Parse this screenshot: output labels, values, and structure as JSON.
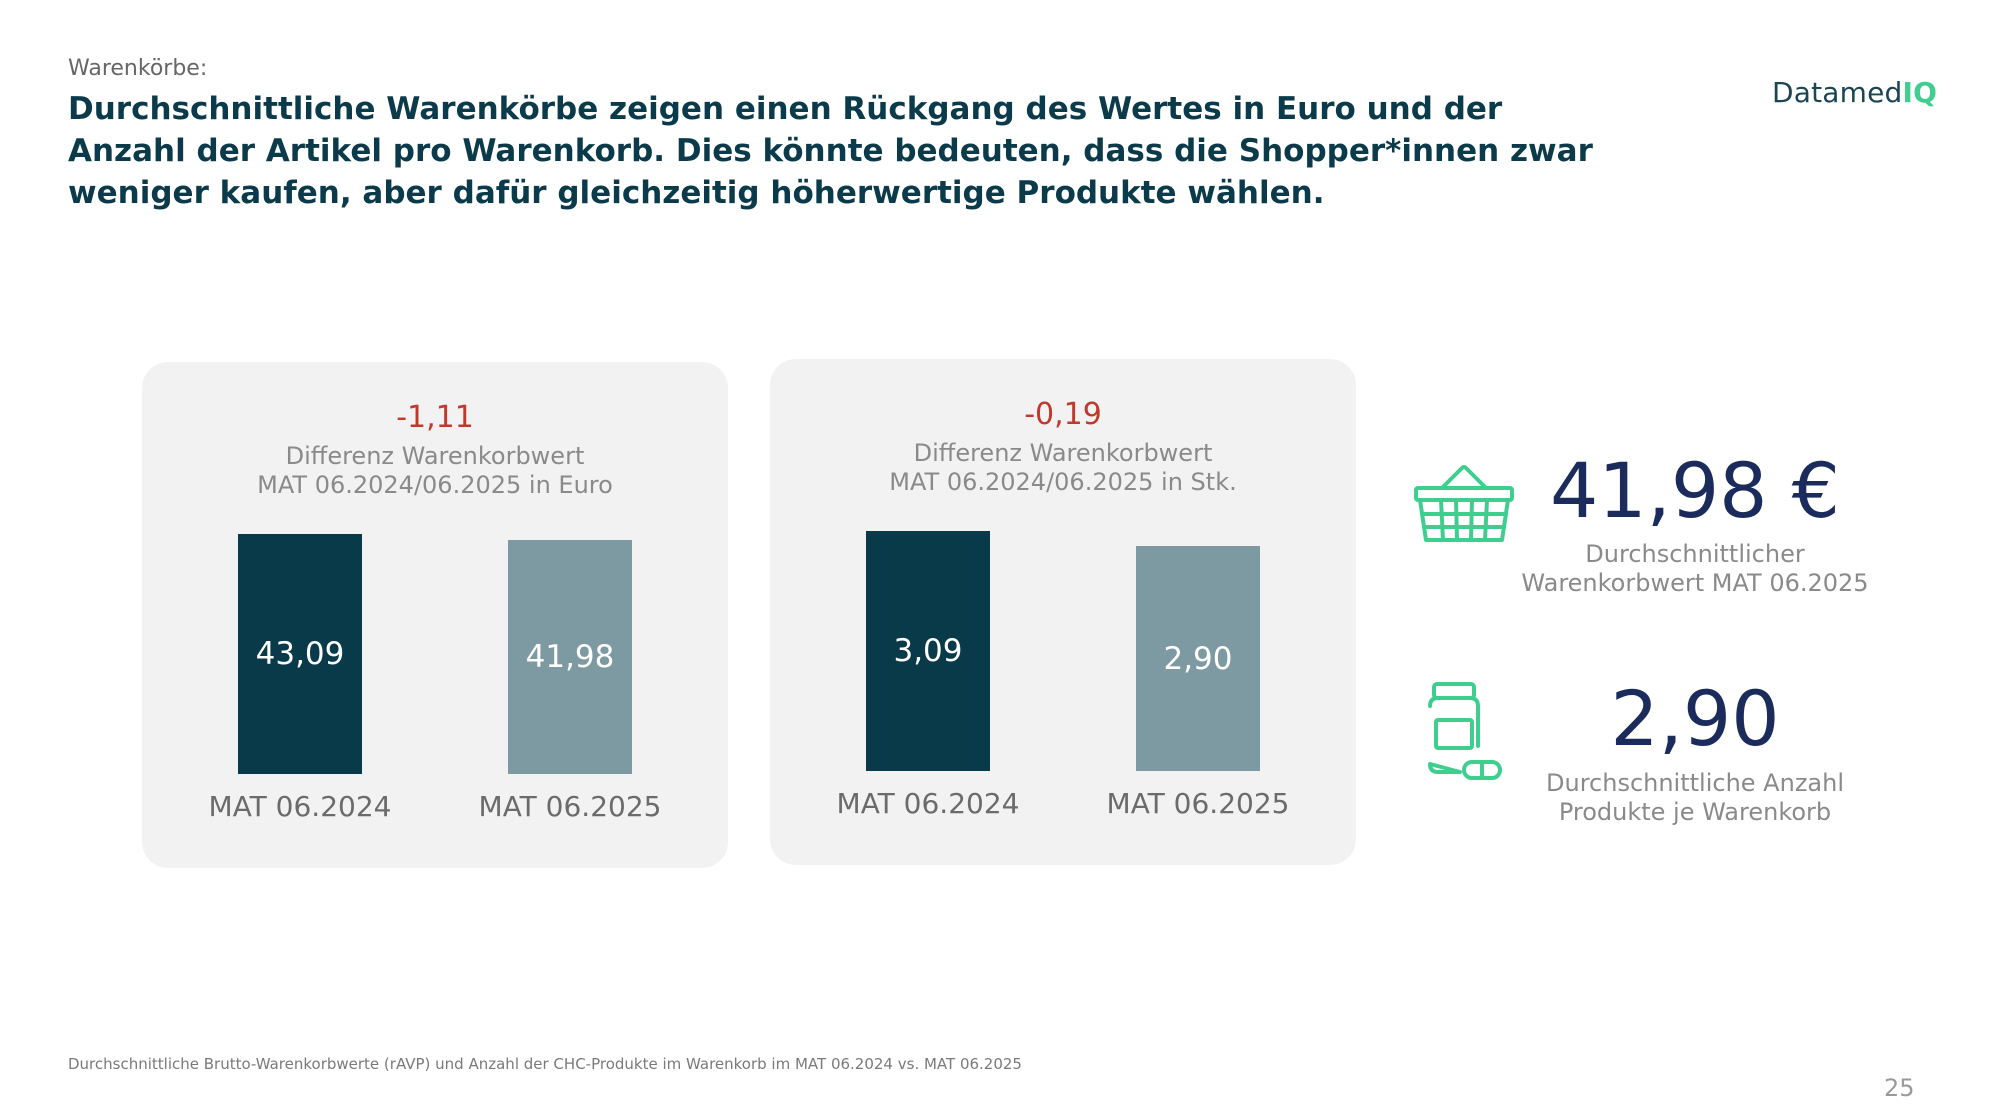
{
  "header": {
    "kicker": "Warenkörbe:",
    "headline": "Durchschnittliche Warenkörbe zeigen einen Rückgang des Wertes in Euro und der Anzahl der Artikel pro Warenkorb. Dies könnte bedeuten, dass die Shopper*innen zwar weniger kaufen, aber dafür gleichzeitig höherwertige Produkte wählen."
  },
  "logo": {
    "text_main": "Datamed",
    "text_accent": "IQ"
  },
  "colors": {
    "bar_2024": "#083a4a",
    "bar_2025": "#7d9aa2",
    "difference": "#c0392b",
    "icon": "#3ecf8e",
    "kpi_value": "#1b2c5c"
  },
  "chart_data": [
    {
      "type": "bar",
      "difference_label": "-1,11",
      "caption_line1": "Differenz Warenkorbwert",
      "caption_line2": "MAT 06.2024/06.2025 in Euro",
      "categories": [
        "MAT 06.2024",
        "MAT 06.2025"
      ],
      "values": [
        43.09,
        41.98
      ],
      "value_labels": [
        "43,09",
        "41,98"
      ]
    },
    {
      "type": "bar",
      "difference_label": "-0,19",
      "caption_line1": "Differenz Warenkorbwert",
      "caption_line2": "MAT 06.2024/06.2025 in Stk.",
      "categories": [
        "MAT 06.2024",
        "MAT 06.2025"
      ],
      "values": [
        3.09,
        2.9
      ],
      "value_labels": [
        "3,09",
        "2,90"
      ]
    }
  ],
  "kpis": [
    {
      "icon": "shopping-basket-icon",
      "value": "41,98 €",
      "label_line1": "Durchschnittlicher",
      "label_line2": "Warenkorbwert MAT 06.2025"
    },
    {
      "icon": "medicine-bottle-icon",
      "value": "2,90",
      "label_line1": "Durchschnittliche Anzahl",
      "label_line2": "Produkte je Warenkorb"
    }
  ],
  "footnote": "Durchschnittliche Brutto-Warenkorbwerte (rAVP) und Anzahl der CHC-Produkte im Warenkorb im MAT 06.2024 vs. MAT 06.2025",
  "page_number": "25"
}
